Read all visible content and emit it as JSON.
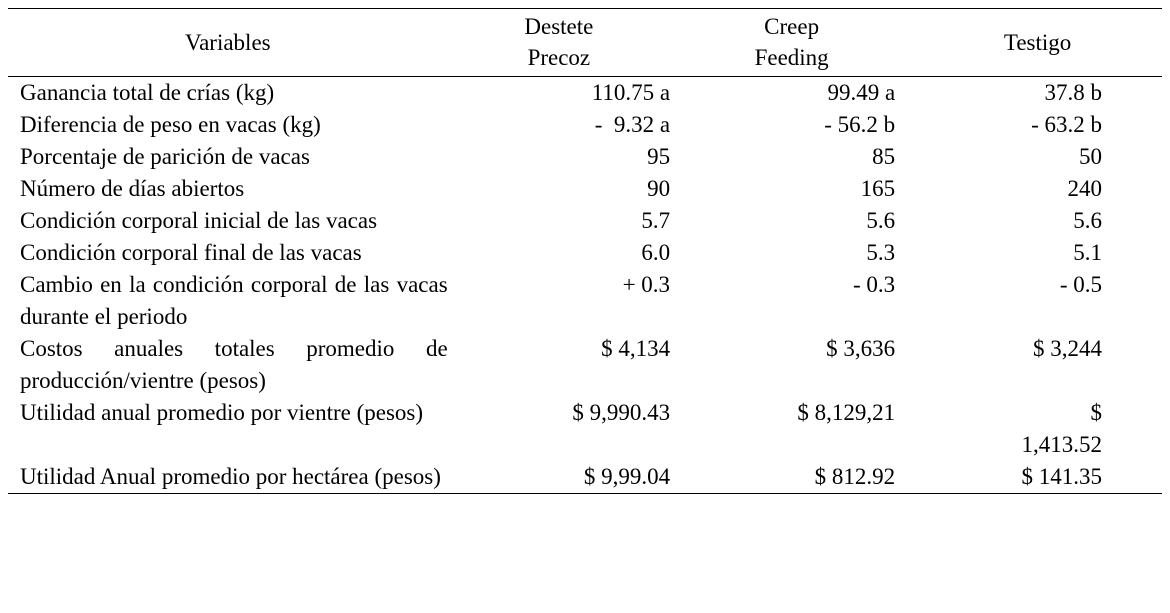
{
  "table": {
    "headers": {
      "variables": "Variables",
      "destete_line1": "Destete",
      "destete_line2": "Precoz",
      "creep_line1": "Creep",
      "creep_line2": "Feeding",
      "testigo": "Testigo"
    },
    "rows": [
      {
        "variable": "Ganancia total de crías (kg)",
        "destete_precoz": "110.75 a",
        "creep_feeding": "99.49 a",
        "testigo": "37.8 b"
      },
      {
        "variable": "Diferencia de peso en vacas (kg)",
        "destete_precoz": "-  9.32 a",
        "creep_feeding": "- 56.2 b",
        "testigo": "- 63.2 b"
      },
      {
        "variable": "Porcentaje de parición de vacas",
        "destete_precoz": "95",
        "creep_feeding": "85",
        "testigo": "50"
      },
      {
        "variable": "Número de días abiertos",
        "destete_precoz": "90",
        "creep_feeding": "165",
        "testigo": "240"
      },
      {
        "variable": "Condición corporal inicial de las vacas",
        "destete_precoz": "5.7",
        "creep_feeding": "5.6",
        "testigo": "5.6"
      },
      {
        "variable": "Condición corporal final de las vacas",
        "destete_precoz": "6.0",
        "creep_feeding": "5.3",
        "testigo": "5.1"
      },
      {
        "variable": "Cambio en la condición corporal de las vacas durante el periodo",
        "destete_precoz": "+ 0.3",
        "creep_feeding": "- 0.3",
        "testigo": "- 0.5"
      },
      {
        "variable": "Costos anuales totales promedio de producción/vientre (pesos)",
        "destete_precoz": "$ 4,134",
        "creep_feeding": "$ 3,636",
        "testigo": "$ 3,244"
      },
      {
        "variable": "Utilidad anual promedio por vientre (pesos)",
        "destete_precoz": "$ 9,990.43",
        "creep_feeding": "$ 8,129,21",
        "testigo": "$ 1,413.52"
      },
      {
        "variable": "Utilidad Anual promedio por hectárea (pesos)",
        "destete_precoz": "$ 9,99.04",
        "creep_feeding": "$ 812.92",
        "testigo": "$ 141.35"
      }
    ]
  }
}
